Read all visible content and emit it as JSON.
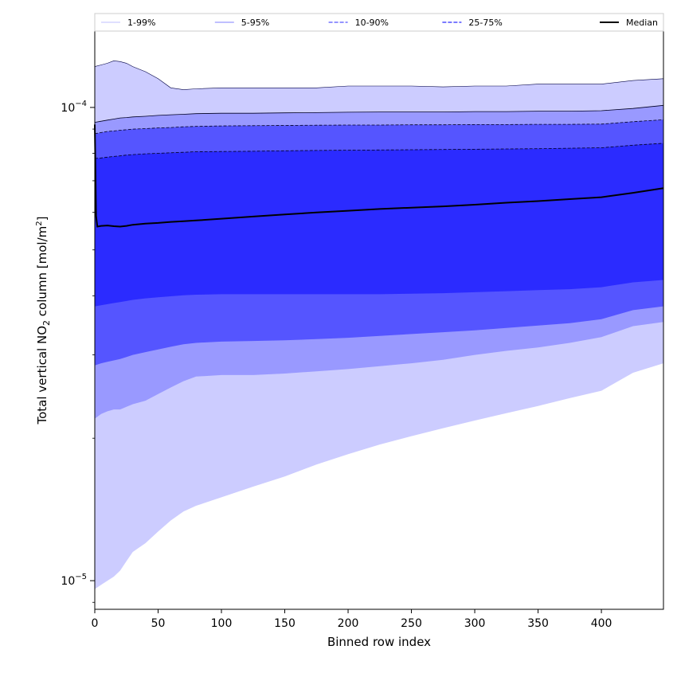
{
  "chart_data": {
    "type": "area",
    "title": "",
    "xlabel": "Binned row index",
    "ylabel_main": "Total vertical NO",
    "ylabel_sub": "2",
    "ylabel_rest": " column [mol/m",
    "ylabel_sup": "2",
    "ylabel_end": "]",
    "xlim": [
      0,
      449
    ],
    "ylim": [
      8.7e-06,
      0.000145
    ],
    "yscale": "log",
    "grid": false,
    "legend_position": "top",
    "x_ticks": [
      0,
      50,
      100,
      150,
      200,
      250,
      300,
      350,
      400
    ],
    "x_tick_labels": [
      "0",
      "50",
      "100",
      "150",
      "200",
      "250",
      "300",
      "350",
      "400"
    ],
    "y_major_ticks": [
      {
        "value": 1e-05,
        "base": "10",
        "exponent": "−5"
      },
      {
        "value": 0.0001,
        "base": "10",
        "exponent": "−4"
      }
    ],
    "y_minor_ticks": [
      9e-06,
      2e-05,
      3e-05,
      4e-05,
      5e-05,
      6e-05,
      7e-05,
      8e-05,
      9e-05
    ],
    "x": [
      0,
      5,
      10,
      15,
      20,
      25,
      30,
      40,
      50,
      60,
      70,
      80,
      100,
      125,
      150,
      175,
      200,
      225,
      250,
      275,
      300,
      325,
      350,
      375,
      400,
      425,
      449
    ],
    "bands": [
      {
        "name": "1-99%",
        "color": "#ccccff",
        "lower": [
          9.6e-06,
          9.8e-06,
          1e-05,
          1.02e-05,
          1.05e-05,
          1.1e-05,
          1.15e-05,
          1.2e-05,
          1.27e-05,
          1.34e-05,
          1.4e-05,
          1.44e-05,
          1.5e-05,
          1.58e-05,
          1.66e-05,
          1.76e-05,
          1.85e-05,
          1.94e-05,
          2.02e-05,
          2.1e-05,
          2.18e-05,
          2.26e-05,
          2.34e-05,
          2.43e-05,
          2.52e-05,
          2.75e-05,
          2.88e-05
        ],
        "upper": [
          0.000122,
          0.000123,
          0.000124,
          0.0001255,
          0.000125,
          0.000124,
          0.000122,
          0.000119,
          0.000115,
          0.00011,
          0.000109,
          0.0001095,
          0.00011,
          0.00011,
          0.00011,
          0.00011,
          0.000111,
          0.000111,
          0.000111,
          0.0001105,
          0.000111,
          0.000111,
          0.000112,
          0.000112,
          0.000112,
          0.000114,
          0.000115
        ]
      },
      {
        "name": "5-95%",
        "color": "#9999ff",
        "lower": [
          2.2e-05,
          2.25e-05,
          2.28e-05,
          2.3e-05,
          2.3e-05,
          2.33e-05,
          2.36e-05,
          2.4e-05,
          2.48e-05,
          2.56e-05,
          2.64e-05,
          2.7e-05,
          2.72e-05,
          2.72e-05,
          2.74e-05,
          2.77e-05,
          2.8e-05,
          2.84e-05,
          2.88e-05,
          2.93e-05,
          3e-05,
          3.06e-05,
          3.11e-05,
          3.18e-05,
          3.27e-05,
          3.45e-05,
          3.52e-05
        ],
        "upper": [
          9.3e-05,
          9.35e-05,
          9.4e-05,
          9.45e-05,
          9.5e-05,
          9.52e-05,
          9.55e-05,
          9.58e-05,
          9.62e-05,
          9.65e-05,
          9.67e-05,
          9.7e-05,
          9.72e-05,
          9.72e-05,
          9.74e-05,
          9.75e-05,
          9.77e-05,
          9.78e-05,
          9.78e-05,
          9.78e-05,
          9.8e-05,
          9.8e-05,
          9.82e-05,
          9.82e-05,
          9.84e-05,
          9.95e-05,
          0.000101
        ]
      },
      {
        "name": "10-90%",
        "color": "#5555ff",
        "lower": [
          2.85e-05,
          2.88e-05,
          2.9e-05,
          2.92e-05,
          2.94e-05,
          2.97e-05,
          3e-05,
          3.04e-05,
          3.08e-05,
          3.12e-05,
          3.16e-05,
          3.18e-05,
          3.2e-05,
          3.21e-05,
          3.22e-05,
          3.24e-05,
          3.26e-05,
          3.29e-05,
          3.32e-05,
          3.35e-05,
          3.38e-05,
          3.42e-05,
          3.46e-05,
          3.5e-05,
          3.57e-05,
          3.73e-05,
          3.8e-05
        ],
        "upper": [
          8.8e-05,
          8.85e-05,
          8.9e-05,
          8.92e-05,
          8.95e-05,
          8.97e-05,
          9e-05,
          9.02e-05,
          9.05e-05,
          9.07e-05,
          9.1e-05,
          9.12e-05,
          9.14e-05,
          9.15e-05,
          9.16e-05,
          9.17e-05,
          9.18e-05,
          9.18e-05,
          9.19e-05,
          9.19e-05,
          9.2e-05,
          9.2e-05,
          9.21e-05,
          9.21e-05,
          9.22e-05,
          9.33e-05,
          9.42e-05
        ]
      },
      {
        "name": "25-75%",
        "color": "#2b2bff",
        "lower": [
          3.8e-05,
          3.82e-05,
          3.84e-05,
          3.86e-05,
          3.88e-05,
          3.9e-05,
          3.92e-05,
          3.95e-05,
          3.97e-05,
          3.99e-05,
          4.01e-05,
          4.02e-05,
          4.03e-05,
          4.03e-05,
          4.03e-05,
          4.03e-05,
          4.03e-05,
          4.03e-05,
          4.04e-05,
          4.05e-05,
          4.07e-05,
          4.09e-05,
          4.11e-05,
          4.13e-05,
          4.17e-05,
          4.27e-05,
          4.32e-05
        ],
        "upper": [
          7.8e-05,
          7.82e-05,
          7.85e-05,
          7.88e-05,
          7.9e-05,
          7.93e-05,
          7.95e-05,
          7.98e-05,
          8e-05,
          8.02e-05,
          8.04e-05,
          8.06e-05,
          8.07e-05,
          8.08e-05,
          8.1e-05,
          8.11e-05,
          8.12e-05,
          8.13e-05,
          8.14e-05,
          8.15e-05,
          8.16e-05,
          8.17e-05,
          8.18e-05,
          8.2e-05,
          8.22e-05,
          8.32e-05,
          8.4e-05
        ]
      }
    ],
    "median": {
      "name": "Median",
      "color": "#000000",
      "x": [
        0,
        1,
        2,
        5,
        10,
        15,
        20,
        25,
        30,
        40,
        50,
        60,
        70,
        80,
        100,
        125,
        150,
        175,
        200,
        225,
        250,
        275,
        300,
        325,
        350,
        375,
        400,
        425,
        449
      ],
      "values": [
        9.2e-05,
        5.9e-05,
        5.6e-05,
        5.62e-05,
        5.63e-05,
        5.61e-05,
        5.6e-05,
        5.62e-05,
        5.65e-05,
        5.68e-05,
        5.7e-05,
        5.73e-05,
        5.75e-05,
        5.77e-05,
        5.82e-05,
        5.88e-05,
        5.94e-05,
        6e-05,
        6.05e-05,
        6.1e-05,
        6.14e-05,
        6.18e-05,
        6.23e-05,
        6.29e-05,
        6.34e-05,
        6.4e-05,
        6.46e-05,
        6.6e-05,
        6.75e-05
      ]
    },
    "legend": [
      {
        "label": "1-99%",
        "color": "#ccccff",
        "style": "solid"
      },
      {
        "label": "5-95%",
        "color": "#9999ff",
        "style": "solid"
      },
      {
        "label": "10-90%",
        "color": "#5555ff",
        "style": "dashed"
      },
      {
        "label": "25-75%",
        "color": "#2b2bff",
        "style": "dashed"
      },
      {
        "label": "Median",
        "color": "#000000",
        "style": "solid"
      }
    ]
  }
}
